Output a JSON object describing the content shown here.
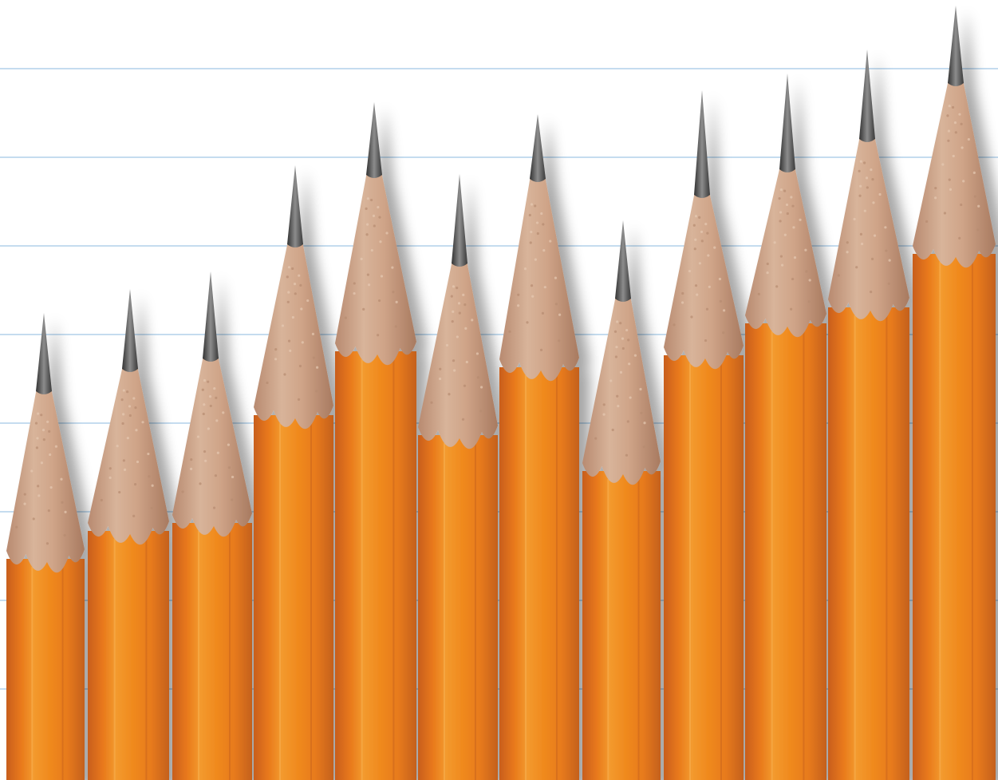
{
  "scene": {
    "description_key": "sharpened-pencils-on-ruled-paper",
    "pencil_count": 12,
    "ruled_line_count": 8
  },
  "colors": {
    "paper": "#ffffff",
    "rule_line": "#c5dcef",
    "pencil_body": "#f08a1e",
    "pencil_body_light": "#f7a63a",
    "pencil_body_dark": "#c9601a",
    "wood": "#cfa488",
    "wood_light": "#e2c2a8",
    "wood_dark": "#a97c62",
    "graphite": "#4a4a4a",
    "graphite_light": "#8a8a8a"
  }
}
